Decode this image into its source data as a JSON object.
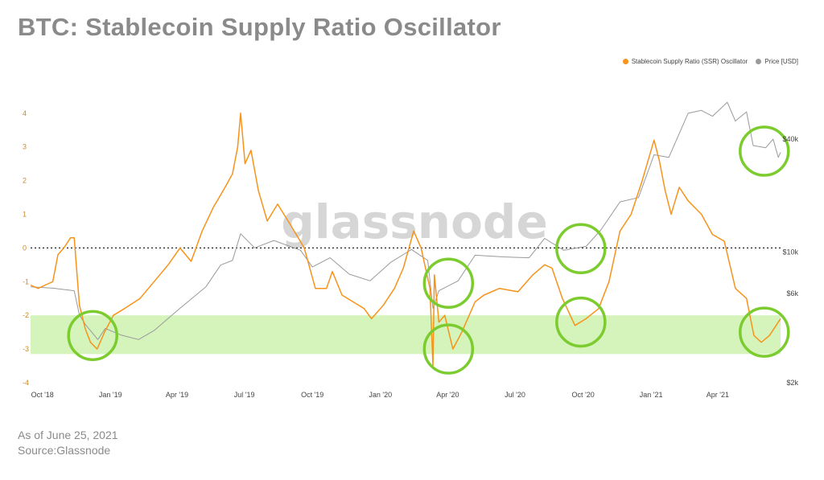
{
  "title": "BTC: Stablecoin Supply Ratio Oscillator",
  "footer": {
    "date_line": "As of June 25, 2021",
    "source_line": "Source:Glassnode"
  },
  "watermark": "glassnode",
  "colors": {
    "ssr": "#f7931a",
    "price": "#9a9a9a",
    "band": "#cdf2b0",
    "circle": "#7ccc2f"
  },
  "chart_data": {
    "type": "line",
    "title": "BTC: Stablecoin Supply Ratio Oscillator",
    "legend_position": "top-right",
    "grid": false,
    "x_ticks": [
      "Oct '18",
      "Jan '19",
      "Apr '19",
      "Jul '19",
      "Oct '19",
      "Jan '20",
      "Apr '20",
      "Jul '20",
      "Oct '20",
      "Jan '21",
      "Apr '21"
    ],
    "x_range": [
      "2018-09-15",
      "2021-06-25"
    ],
    "y_left": {
      "range": [
        -4,
        4.4
      ],
      "ticks": [
        "4",
        "3",
        "2",
        "1",
        "0",
        "-1",
        "-2",
        "-3",
        "-4"
      ]
    },
    "y_right": {
      "scale": "log",
      "range": [
        2000,
        65000
      ],
      "ticks": [
        {
          "label": "$40k",
          "value": 40000
        },
        {
          "label": "$10k",
          "value": 10000
        },
        {
          "label": "$6k",
          "value": 6000
        },
        {
          "label": "$2k",
          "value": 2000
        }
      ]
    },
    "reference_line": {
      "y": 0,
      "style": "dotted"
    },
    "band": {
      "y_from": -2,
      "y_to": -3.15
    },
    "series": [
      {
        "name": "Stablecoin Supply Ratio (SSR) Oscillator",
        "axis": "left",
        "points": [
          [
            "2018-09-15",
            -1.1
          ],
          [
            "2018-09-25",
            -1.2
          ],
          [
            "2018-10-05",
            -1.1
          ],
          [
            "2018-10-15",
            -1.0
          ],
          [
            "2018-10-22",
            -0.2
          ],
          [
            "2018-10-30",
            0.0
          ],
          [
            "2018-11-08",
            0.3
          ],
          [
            "2018-11-13",
            0.3
          ],
          [
            "2018-11-20",
            -1.7
          ],
          [
            "2018-11-28",
            -2.4
          ],
          [
            "2018-12-05",
            -2.8
          ],
          [
            "2018-12-14",
            -3.0
          ],
          [
            "2018-12-24",
            -2.5
          ],
          [
            "2019-01-05",
            -2.0
          ],
          [
            "2019-01-20",
            -1.8
          ],
          [
            "2019-02-10",
            -1.5
          ],
          [
            "2019-03-01",
            -1.0
          ],
          [
            "2019-03-20",
            -0.5
          ],
          [
            "2019-04-05",
            0.0
          ],
          [
            "2019-04-20",
            -0.4
          ],
          [
            "2019-05-05",
            0.5
          ],
          [
            "2019-05-20",
            1.2
          ],
          [
            "2019-06-05",
            1.8
          ],
          [
            "2019-06-15",
            2.2
          ],
          [
            "2019-06-22",
            3.0
          ],
          [
            "2019-06-26",
            4.0
          ],
          [
            "2019-07-02",
            2.5
          ],
          [
            "2019-07-10",
            2.9
          ],
          [
            "2019-07-20",
            1.7
          ],
          [
            "2019-08-01",
            0.8
          ],
          [
            "2019-08-15",
            1.3
          ],
          [
            "2019-09-01",
            0.7
          ],
          [
            "2019-09-20",
            0.0
          ],
          [
            "2019-10-05",
            -1.2
          ],
          [
            "2019-10-20",
            -1.2
          ],
          [
            "2019-10-28",
            -0.7
          ],
          [
            "2019-11-10",
            -1.4
          ],
          [
            "2019-11-25",
            -1.6
          ],
          [
            "2019-12-10",
            -1.8
          ],
          [
            "2019-12-20",
            -2.1
          ],
          [
            "2020-01-05",
            -1.7
          ],
          [
            "2020-01-20",
            -1.2
          ],
          [
            "2020-02-01",
            -0.6
          ],
          [
            "2020-02-15",
            0.5
          ],
          [
            "2020-02-25",
            0.0
          ],
          [
            "2020-03-08",
            -1.2
          ],
          [
            "2020-03-12",
            -3.5
          ],
          [
            "2020-03-14",
            -0.8
          ],
          [
            "2020-03-20",
            -2.2
          ],
          [
            "2020-03-28",
            -2.0
          ],
          [
            "2020-04-08",
            -3.0
          ],
          [
            "2020-04-20",
            -2.5
          ],
          [
            "2020-05-08",
            -1.6
          ],
          [
            "2020-05-20",
            -1.4
          ],
          [
            "2020-06-10",
            -1.2
          ],
          [
            "2020-07-05",
            -1.3
          ],
          [
            "2020-07-25",
            -0.8
          ],
          [
            "2020-08-10",
            -0.5
          ],
          [
            "2020-08-20",
            -0.6
          ],
          [
            "2020-09-03",
            -1.5
          ],
          [
            "2020-09-20",
            -2.3
          ],
          [
            "2020-10-05",
            -2.1
          ],
          [
            "2020-10-22",
            -1.8
          ],
          [
            "2020-11-05",
            -1.0
          ],
          [
            "2020-11-20",
            0.5
          ],
          [
            "2020-12-05",
            1.0
          ],
          [
            "2020-12-20",
            2.0
          ],
          [
            "2021-01-05",
            3.2
          ],
          [
            "2021-01-12",
            2.6
          ],
          [
            "2021-01-20",
            1.7
          ],
          [
            "2021-01-28",
            1.0
          ],
          [
            "2021-02-08",
            1.8
          ],
          [
            "2021-02-20",
            1.4
          ],
          [
            "2021-03-10",
            1.0
          ],
          [
            "2021-03-25",
            0.4
          ],
          [
            "2021-04-10",
            0.2
          ],
          [
            "2021-04-25",
            -1.2
          ],
          [
            "2021-05-10",
            -1.5
          ],
          [
            "2021-05-20",
            -2.6
          ],
          [
            "2021-05-30",
            -2.8
          ],
          [
            "2021-06-10",
            -2.6
          ],
          [
            "2021-06-25",
            -2.1
          ]
        ]
      },
      {
        "name": "Price [USD]",
        "axis": "right",
        "points": [
          [
            "2018-09-15",
            6500
          ],
          [
            "2018-10-15",
            6400
          ],
          [
            "2018-11-13",
            6200
          ],
          [
            "2018-11-20",
            4600
          ],
          [
            "2018-11-28",
            4100
          ],
          [
            "2018-12-15",
            3400
          ],
          [
            "2018-12-25",
            3900
          ],
          [
            "2019-01-15",
            3600
          ],
          [
            "2019-02-08",
            3400
          ],
          [
            "2019-03-01",
            3800
          ],
          [
            "2019-04-05",
            5000
          ],
          [
            "2019-05-10",
            6500
          ],
          [
            "2019-05-30",
            8500
          ],
          [
            "2019-06-15",
            9000
          ],
          [
            "2019-06-26",
            12500
          ],
          [
            "2019-07-15",
            10500
          ],
          [
            "2019-08-10",
            11500
          ],
          [
            "2019-09-15",
            10200
          ],
          [
            "2019-10-01",
            8300
          ],
          [
            "2019-10-25",
            9300
          ],
          [
            "2019-11-20",
            7600
          ],
          [
            "2019-12-18",
            7000
          ],
          [
            "2020-01-15",
            8800
          ],
          [
            "2020-02-12",
            10300
          ],
          [
            "2020-03-05",
            9000
          ],
          [
            "2020-03-12",
            5000
          ],
          [
            "2020-03-20",
            6200
          ],
          [
            "2020-04-15",
            7000
          ],
          [
            "2020-05-08",
            9600
          ],
          [
            "2020-06-15",
            9400
          ],
          [
            "2020-07-20",
            9300
          ],
          [
            "2020-08-10",
            11800
          ],
          [
            "2020-09-05",
            10200
          ],
          [
            "2020-10-05",
            10700
          ],
          [
            "2020-10-25",
            13100
          ],
          [
            "2020-11-20",
            18500
          ],
          [
            "2020-12-15",
            19500
          ],
          [
            "2021-01-05",
            33000
          ],
          [
            "2021-01-25",
            32000
          ],
          [
            "2021-02-20",
            55000
          ],
          [
            "2021-03-10",
            57000
          ],
          [
            "2021-03-25",
            53000
          ],
          [
            "2021-04-14",
            63000
          ],
          [
            "2021-04-25",
            50000
          ],
          [
            "2021-05-10",
            56000
          ],
          [
            "2021-05-19",
            37000
          ],
          [
            "2021-06-05",
            36000
          ],
          [
            "2021-06-15",
            40000
          ],
          [
            "2021-06-22",
            32000
          ],
          [
            "2021-06-25",
            34000
          ]
        ]
      }
    ],
    "annotations": [
      {
        "type": "circle",
        "x": "2018-12-08",
        "axis": "left",
        "y": -2.6
      },
      {
        "type": "circle",
        "x": "2020-04-02",
        "axis": "left",
        "y": -3.0
      },
      {
        "type": "circle",
        "x": "2020-09-28",
        "axis": "left",
        "y": -2.2
      },
      {
        "type": "circle",
        "x": "2021-06-03",
        "axis": "left",
        "y": -2.5
      },
      {
        "type": "circle",
        "x": "2020-04-02",
        "axis": "right",
        "y": 6800
      },
      {
        "type": "circle",
        "x": "2020-09-28",
        "axis": "right",
        "y": 10400
      },
      {
        "type": "circle",
        "x": "2021-06-03",
        "axis": "right",
        "y": 34500
      }
    ]
  }
}
